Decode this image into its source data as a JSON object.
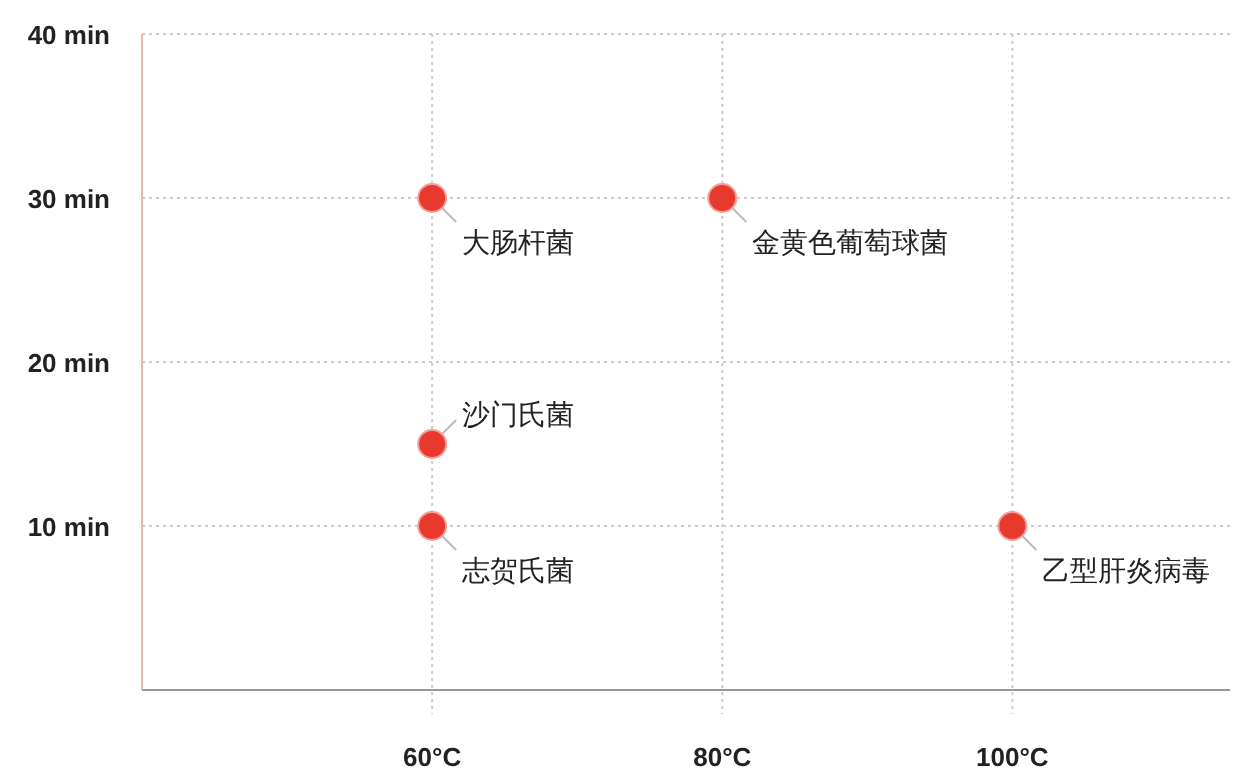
{
  "chart_data": {
    "type": "scatter",
    "x": [
      60,
      80,
      60,
      60,
      100
    ],
    "values": [
      30,
      30,
      15,
      10,
      10
    ],
    "color": "#e8392f",
    "marker": "circle",
    "annotations": [
      {
        "text": "大肠杆菌",
        "x": 60,
        "y": 30
      },
      {
        "text": "金黄色葡萄球菌",
        "x": 80,
        "y": 30
      },
      {
        "text": "沙门氏菌",
        "x": 60,
        "y": 15
      },
      {
        "text": "志贺氏菌",
        "x": 60,
        "y": 10
      },
      {
        "text": "乙型肝炎病毒",
        "x": 100,
        "y": 10
      }
    ],
    "xlim": [
      40,
      115
    ],
    "ylim": [
      0,
      40
    ],
    "xticks": [
      {
        "value": 60,
        "label": "60°C"
      },
      {
        "value": 80,
        "label": "80°C"
      },
      {
        "value": 100,
        "label": "100°C"
      }
    ],
    "yticks": [
      {
        "value": 10,
        "label": "10 min"
      },
      {
        "value": 20,
        "label": "20 min"
      },
      {
        "value": 30,
        "label": "30 min"
      },
      {
        "value": 40,
        "label": "40 min"
      }
    ],
    "grid": true
  }
}
